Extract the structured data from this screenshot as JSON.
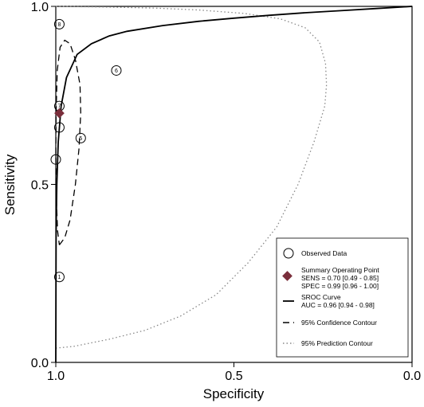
{
  "chart_data": {
    "type": "scatter",
    "title": "",
    "xlabel": "Specificity",
    "ylabel": "Sensitivity",
    "x_reversed": true,
    "xlim": [
      1.0,
      0.0
    ],
    "ylim": [
      0.0,
      1.0
    ],
    "x_ticks": [
      {
        "value": 1.0,
        "label": "1.0"
      },
      {
        "value": 0.5,
        "label": "0.5"
      },
      {
        "value": 0.0,
        "label": "0.0"
      }
    ],
    "y_ticks": [
      {
        "value": 0.0,
        "label": "0.0"
      },
      {
        "value": 0.5,
        "label": "0.5"
      },
      {
        "value": 1.0,
        "label": "1.0"
      }
    ],
    "grid": false,
    "legend_position": "bottom-right",
    "observed_points": [
      {
        "label": "1",
        "specificity": 0.99,
        "sensitivity": 0.24
      },
      {
        "label": "",
        "specificity": 1.0,
        "sensitivity": 0.57
      },
      {
        "label": "",
        "specificity": 0.99,
        "sensitivity": 0.66
      },
      {
        "label": "5",
        "specificity": 0.93,
        "sensitivity": 0.63
      },
      {
        "label": "6",
        "specificity": 0.83,
        "sensitivity": 0.82
      },
      {
        "label": "7",
        "specificity": 0.99,
        "sensitivity": 0.72
      },
      {
        "label": "8",
        "specificity": 0.99,
        "sensitivity": 0.95
      }
    ],
    "summary_point": {
      "specificity": 0.99,
      "sensitivity": 0.7,
      "color": "#7a2e3b"
    },
    "sroc_curve": [
      [
        1.0,
        0.0
      ],
      [
        0.999,
        0.36
      ],
      [
        0.997,
        0.5
      ],
      [
        0.993,
        0.62
      ],
      [
        0.985,
        0.72
      ],
      [
        0.97,
        0.8
      ],
      [
        0.94,
        0.865
      ],
      [
        0.9,
        0.895
      ],
      [
        0.85,
        0.917
      ],
      [
        0.8,
        0.93
      ],
      [
        0.7,
        0.946
      ],
      [
        0.6,
        0.958
      ],
      [
        0.5,
        0.967
      ],
      [
        0.4,
        0.975
      ],
      [
        0.3,
        0.982
      ],
      [
        0.2,
        0.988
      ],
      [
        0.1,
        0.994
      ],
      [
        0.0,
        1.0
      ]
    ],
    "confidence_contour": [
      [
        0.99,
        0.33
      ],
      [
        0.975,
        0.35
      ],
      [
        0.96,
        0.4
      ],
      [
        0.945,
        0.5
      ],
      [
        0.935,
        0.6
      ],
      [
        0.93,
        0.7
      ],
      [
        0.932,
        0.78
      ],
      [
        0.945,
        0.85
      ],
      [
        0.96,
        0.895
      ],
      [
        0.975,
        0.905
      ],
      [
        0.988,
        0.885
      ],
      [
        0.996,
        0.82
      ],
      [
        0.999,
        0.7
      ],
      [
        1.0,
        0.58
      ],
      [
        0.998,
        0.45
      ],
      [
        0.995,
        0.37
      ],
      [
        0.99,
        0.33
      ]
    ],
    "prediction_contour": [
      [
        1.0,
        0.04
      ],
      [
        0.95,
        0.045
      ],
      [
        0.85,
        0.065
      ],
      [
        0.75,
        0.09
      ],
      [
        0.65,
        0.13
      ],
      [
        0.55,
        0.19
      ],
      [
        0.46,
        0.28
      ],
      [
        0.38,
        0.38
      ],
      [
        0.32,
        0.5
      ],
      [
        0.275,
        0.62
      ],
      [
        0.245,
        0.72
      ],
      [
        0.24,
        0.78
      ],
      [
        0.243,
        0.84
      ],
      [
        0.26,
        0.9
      ],
      [
        0.3,
        0.94
      ],
      [
        0.37,
        0.965
      ],
      [
        0.47,
        0.98
      ],
      [
        0.6,
        0.99
      ],
      [
        0.72,
        0.995
      ],
      [
        0.85,
        0.998
      ],
      [
        1.0,
        1.0
      ]
    ],
    "legend": {
      "observed": "Observed Data",
      "summary_title": "Summary Operating Point",
      "summary_sens": "SENS = 0.70 [0.49 - 0.85]",
      "summary_spec": "SPEC = 0.99 [0.96 - 1.00]",
      "sroc_title": "SROC Curve",
      "sroc_auc": "AUC = 0.96 [0.94 - 0.98]",
      "confidence": "95% Confidence Contour",
      "prediction": "95% Prediction Contour"
    }
  }
}
